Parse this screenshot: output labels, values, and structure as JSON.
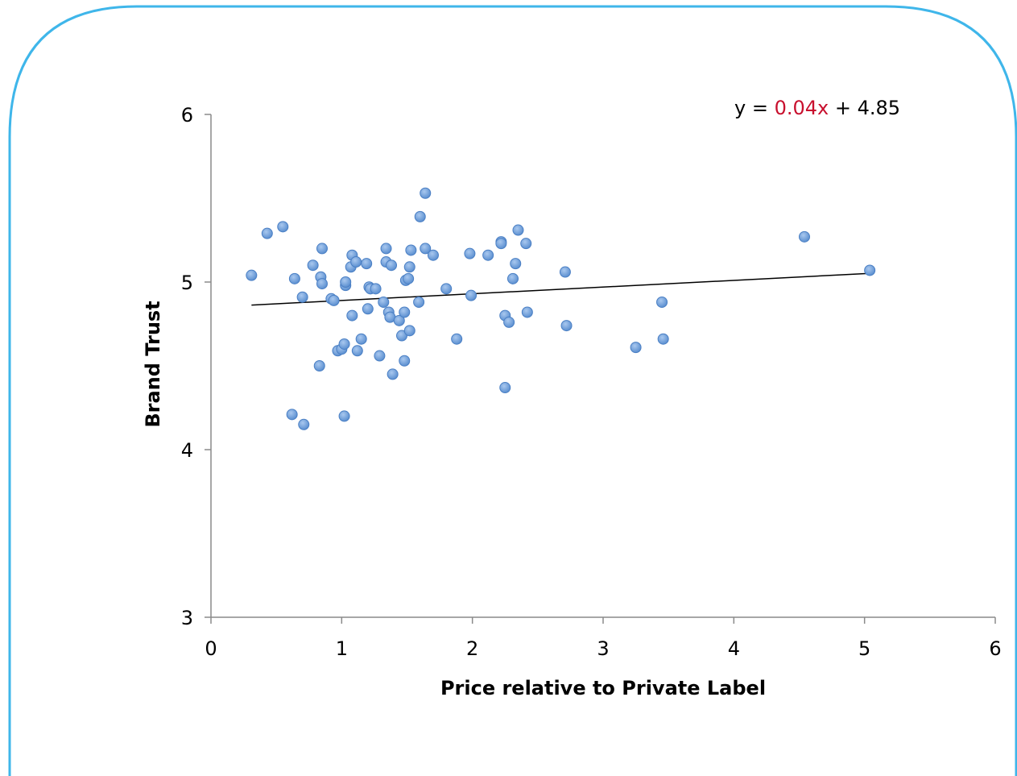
{
  "chart_data": {
    "type": "scatter",
    "title": "",
    "xlabel": "Price relative to Private Label",
    "ylabel": "Brand Trust",
    "xlim": [
      0,
      6
    ],
    "ylim": [
      3,
      6
    ],
    "x_ticks": [
      "0",
      "1",
      "2",
      "3",
      "4",
      "5",
      "6"
    ],
    "y_ticks": [
      "3",
      "4",
      "5",
      "6"
    ],
    "grid": false,
    "legend": "none",
    "marker_color": "#6f9fd8",
    "frame_color": "#3fb6ea",
    "trendline": {
      "type": "linear",
      "slope": 0.04,
      "intercept": 4.85,
      "x_range": [
        0.31,
        5.04
      ],
      "equation_parts": [
        "y = ",
        "0.04x",
        " + 4.85"
      ],
      "highlight_color": "#c8102e"
    },
    "points": [
      [
        0.31,
        5.04
      ],
      [
        0.43,
        5.29
      ],
      [
        0.55,
        5.33
      ],
      [
        0.62,
        4.21
      ],
      [
        0.64,
        5.02
      ],
      [
        0.7,
        4.91
      ],
      [
        0.71,
        4.15
      ],
      [
        0.78,
        5.1
      ],
      [
        0.83,
        4.5
      ],
      [
        0.84,
        5.03
      ],
      [
        0.85,
        5.2
      ],
      [
        0.85,
        4.99
      ],
      [
        0.92,
        4.9
      ],
      [
        0.94,
        4.89
      ],
      [
        0.97,
        4.59
      ],
      [
        1.0,
        4.6
      ],
      [
        1.02,
        4.2
      ],
      [
        1.02,
        4.63
      ],
      [
        1.03,
        4.98
      ],
      [
        1.03,
        5.0
      ],
      [
        1.07,
        5.09
      ],
      [
        1.08,
        4.8
      ],
      [
        1.08,
        5.16
      ],
      [
        1.11,
        5.12
      ],
      [
        1.12,
        4.59
      ],
      [
        1.15,
        4.66
      ],
      [
        1.19,
        5.11
      ],
      [
        1.2,
        4.84
      ],
      [
        1.21,
        4.97
      ],
      [
        1.22,
        4.96
      ],
      [
        1.26,
        4.96
      ],
      [
        1.29,
        4.56
      ],
      [
        1.32,
        4.88
      ],
      [
        1.34,
        5.2
      ],
      [
        1.34,
        5.12
      ],
      [
        1.36,
        4.82
      ],
      [
        1.37,
        4.79
      ],
      [
        1.38,
        5.1
      ],
      [
        1.39,
        4.45
      ],
      [
        1.44,
        4.77
      ],
      [
        1.46,
        4.68
      ],
      [
        1.48,
        4.53
      ],
      [
        1.48,
        4.82
      ],
      [
        1.49,
        5.01
      ],
      [
        1.51,
        5.02
      ],
      [
        1.52,
        4.71
      ],
      [
        1.52,
        5.09
      ],
      [
        1.53,
        5.19
      ],
      [
        1.59,
        4.88
      ],
      [
        1.6,
        5.39
      ],
      [
        1.64,
        5.53
      ],
      [
        1.64,
        5.2
      ],
      [
        1.7,
        5.16
      ],
      [
        1.8,
        4.96
      ],
      [
        1.88,
        4.66
      ],
      [
        1.98,
        5.17
      ],
      [
        1.99,
        4.92
      ],
      [
        2.12,
        5.16
      ],
      [
        2.22,
        5.24
      ],
      [
        2.22,
        5.23
      ],
      [
        2.25,
        4.8
      ],
      [
        2.25,
        4.37
      ],
      [
        2.28,
        4.76
      ],
      [
        2.31,
        5.02
      ],
      [
        2.33,
        5.11
      ],
      [
        2.35,
        5.31
      ],
      [
        2.41,
        5.23
      ],
      [
        2.42,
        4.82
      ],
      [
        2.71,
        5.06
      ],
      [
        2.72,
        4.74
      ],
      [
        3.25,
        4.61
      ],
      [
        3.45,
        4.88
      ],
      [
        3.46,
        4.66
      ],
      [
        4.54,
        5.27
      ],
      [
        5.04,
        5.07
      ]
    ]
  }
}
